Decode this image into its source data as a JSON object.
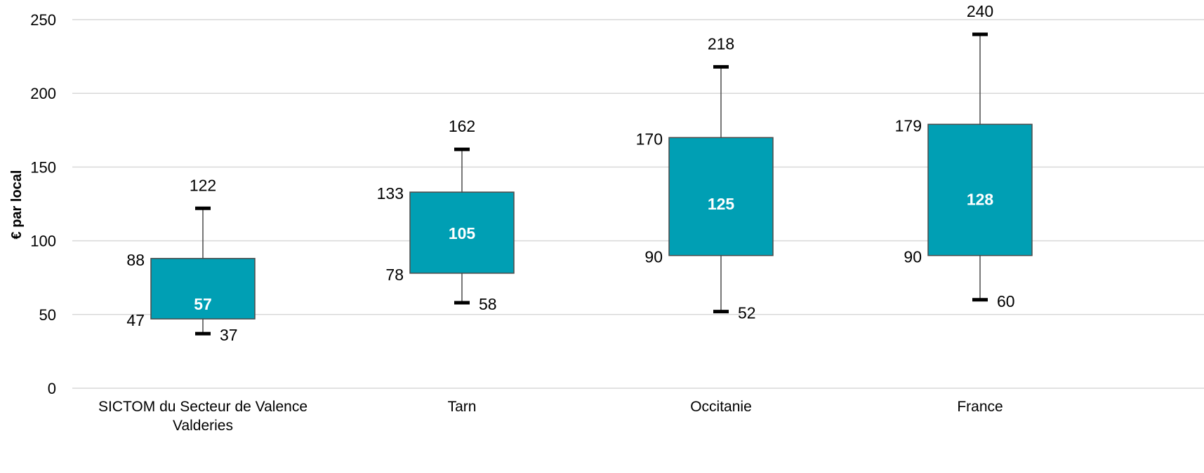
{
  "chart_data": {
    "type": "boxplot",
    "title": "",
    "xlabel": "",
    "ylabel": "€ par local",
    "ylim": [
      0,
      250
    ],
    "yticks": [
      0,
      50,
      100,
      150,
      200,
      250
    ],
    "grid": true,
    "legend": "none",
    "colors": {
      "box_fill": "#009fb4",
      "box_stroke": "#4a4a4a",
      "grid": "#d9d9d9",
      "whisker": "#4a4a4a",
      "cap": "#000000"
    },
    "categories": [
      [
        "SICTOM du Secteur de Valence",
        "Valderies"
      ],
      [
        "Tarn"
      ],
      [
        "Occitanie"
      ],
      [
        "France"
      ]
    ],
    "boxes": [
      {
        "min": 37,
        "q1": 47,
        "median": 57,
        "q3": 88,
        "max": 122
      },
      {
        "min": 58,
        "q1": 78,
        "median": 105,
        "q3": 133,
        "max": 162
      },
      {
        "min": 52,
        "q1": 90,
        "median": 125,
        "q3": 170,
        "max": 218
      },
      {
        "min": 60,
        "q1": 90,
        "median": 128,
        "q3": 179,
        "max": 240
      }
    ]
  }
}
